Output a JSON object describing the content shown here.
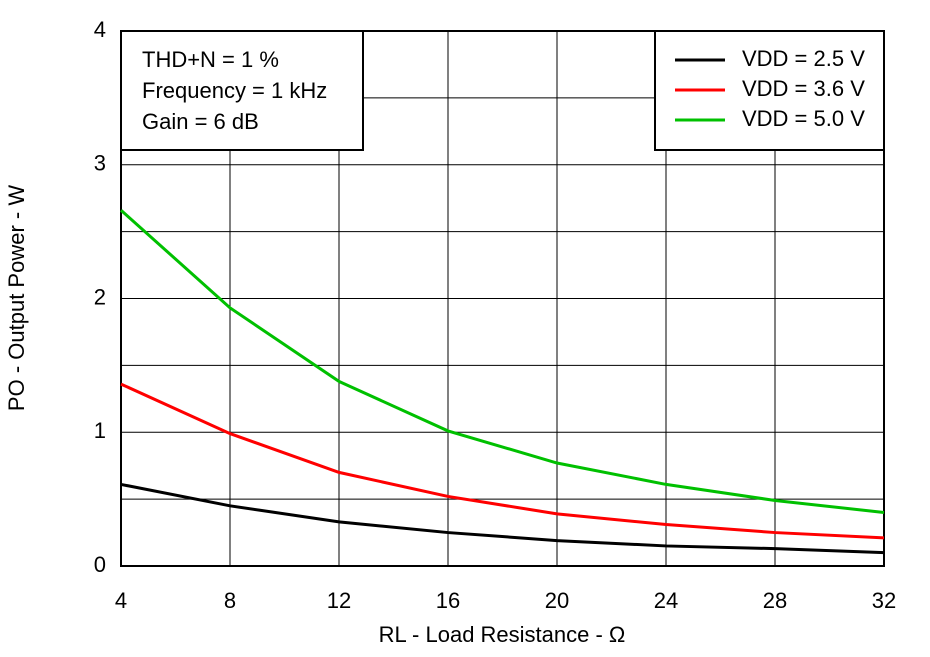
{
  "chart_data": {
    "type": "line",
    "x_label": "RL - Load Resistance - Ω",
    "y_label": "PO - Output Power - W",
    "annotations": [
      "THD+N = 1 %",
      "Frequency = 1 kHz",
      "Gain = 6 dB"
    ],
    "x": [
      4,
      8,
      12,
      16,
      20,
      24,
      28,
      32
    ],
    "series": [
      {
        "name": "VDD = 2.5 V",
        "color": "#000000",
        "values": [
          0.61,
          0.45,
          0.33,
          0.25,
          0.19,
          0.15,
          0.13,
          0.1
        ]
      },
      {
        "name": "VDD = 3.6 V",
        "color": "#ff0000",
        "values": [
          1.36,
          0.99,
          0.7,
          0.52,
          0.39,
          0.31,
          0.25,
          0.21
        ]
      },
      {
        "name": "VDD = 5.0 V",
        "color": "#00c000",
        "values": [
          2.66,
          1.93,
          1.38,
          1.01,
          0.77,
          0.61,
          0.49,
          0.4
        ]
      }
    ],
    "xlim": [
      4,
      32
    ],
    "xticks": [
      4,
      8,
      12,
      16,
      20,
      24,
      28,
      32
    ],
    "ylim": [
      0,
      4
    ],
    "yticks": [
      0,
      1,
      2,
      3,
      4
    ],
    "y_minor_grid": [
      0.5,
      1.5,
      2.5,
      3.5
    ],
    "grid": true,
    "legend": "top-right"
  }
}
